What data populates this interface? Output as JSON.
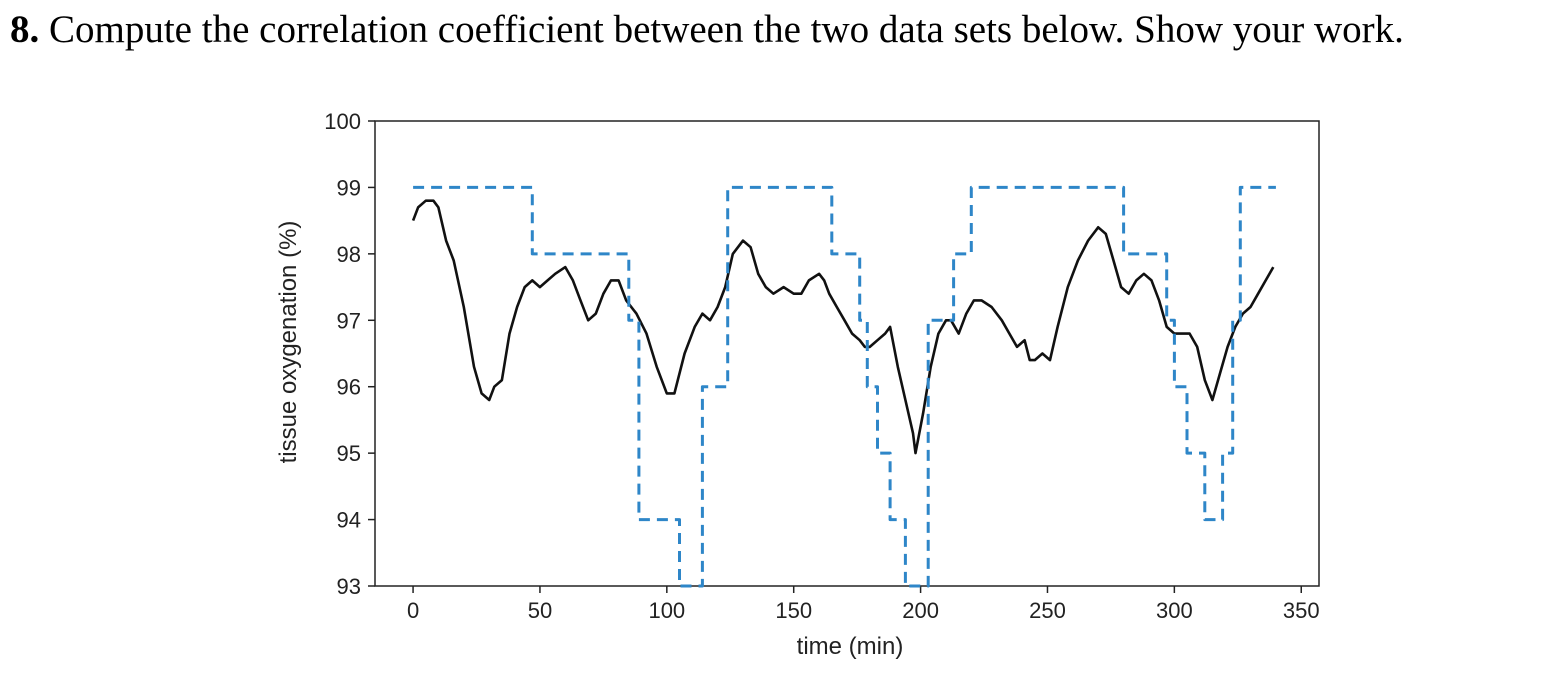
{
  "question": {
    "number": "8.",
    "text": " Compute the correlation coefficient between the two data sets below.  Show your work."
  },
  "chart_data": {
    "type": "line",
    "xlabel": "time (min)",
    "ylabel": "tissue oxygenation (%)",
    "xlim": [
      -15,
      357
    ],
    "ylim": [
      93,
      100
    ],
    "xticks": [
      0,
      50,
      100,
      150,
      200,
      250,
      300,
      350
    ],
    "yticks": [
      93,
      94,
      95,
      96,
      97,
      98,
      99,
      100
    ],
    "grid": false,
    "legend": "none",
    "series": [
      {
        "style": "solid",
        "color": "#111111",
        "x": [
          0,
          2,
          5,
          8,
          10,
          13,
          16,
          20,
          24,
          27,
          30,
          32,
          35,
          38,
          41,
          44,
          47,
          50,
          53,
          56,
          60,
          63,
          66,
          69,
          72,
          75,
          78,
          81,
          84,
          88,
          92,
          96,
          100,
          103,
          107,
          111,
          114,
          117,
          120,
          123,
          126,
          130,
          133,
          136,
          139,
          142,
          146,
          150,
          153,
          156,
          160,
          162,
          164,
          167,
          170,
          173,
          176,
          178,
          180,
          183,
          186,
          188,
          191,
          194,
          197,
          198,
          201,
          204,
          207,
          210,
          212,
          215,
          218,
          221,
          224,
          228,
          232,
          235,
          238,
          241,
          243,
          245,
          248,
          251,
          254,
          258,
          262,
          266,
          270,
          273,
          276,
          279,
          282,
          285,
          288,
          291,
          294,
          297,
          300,
          303,
          306,
          309,
          312,
          315,
          318,
          321,
          324,
          327,
          330,
          333,
          336,
          339
        ],
        "y": [
          98.5,
          98.7,
          98.8,
          98.8,
          98.7,
          98.2,
          97.9,
          97.2,
          96.3,
          95.9,
          95.8,
          96.0,
          96.1,
          96.8,
          97.2,
          97.5,
          97.6,
          97.5,
          97.6,
          97.7,
          97.8,
          97.6,
          97.3,
          97.0,
          97.1,
          97.4,
          97.6,
          97.6,
          97.3,
          97.1,
          96.8,
          96.3,
          95.9,
          95.9,
          96.5,
          96.9,
          97.1,
          97.0,
          97.2,
          97.5,
          98.0,
          98.2,
          98.1,
          97.7,
          97.5,
          97.4,
          97.5,
          97.4,
          97.4,
          97.6,
          97.7,
          97.6,
          97.4,
          97.2,
          97.0,
          96.8,
          96.7,
          96.6,
          96.6,
          96.7,
          96.8,
          96.9,
          96.3,
          95.8,
          95.3,
          95.0,
          95.6,
          96.3,
          96.8,
          97.0,
          97.0,
          96.8,
          97.1,
          97.3,
          97.3,
          97.2,
          97.0,
          96.8,
          96.6,
          96.7,
          96.4,
          96.4,
          96.5,
          96.4,
          96.9,
          97.5,
          97.9,
          98.2,
          98.4,
          98.3,
          97.9,
          97.5,
          97.4,
          97.6,
          97.7,
          97.6,
          97.3,
          96.9,
          96.8,
          96.8,
          96.8,
          96.6,
          96.1,
          95.8,
          96.2,
          96.6,
          96.9,
          97.1,
          97.2,
          97.4,
          97.6,
          97.8
        ]
      },
      {
        "style": "dashed",
        "color": "#2e86c8",
        "x": [
          0,
          47,
          47,
          85,
          85,
          89,
          89,
          105,
          105,
          114,
          114,
          117,
          117,
          120,
          120,
          124,
          124,
          165,
          165,
          176,
          176,
          179,
          179,
          183,
          183,
          188,
          188,
          194,
          194,
          203,
          203,
          207,
          207,
          213,
          213,
          220,
          220,
          280,
          280,
          297,
          297,
          300,
          300,
          305,
          305,
          312,
          312,
          316,
          316,
          319,
          319,
          323,
          323,
          326,
          326,
          331,
          331,
          340
        ],
        "y": [
          99,
          99,
          98,
          98,
          97,
          97,
          94,
          94,
          93,
          93,
          96,
          96,
          96,
          96,
          96,
          96,
          99,
          99,
          98,
          98,
          97,
          97,
          96,
          96,
          95,
          95,
          94,
          94,
          93,
          93,
          97,
          97,
          97,
          97,
          98,
          98,
          99,
          99,
          98,
          98,
          97,
          97,
          96,
          96,
          95,
          95,
          94,
          94,
          94,
          94,
          95,
          95,
          97,
          97,
          99,
          99,
          99,
          99
        ]
      }
    ]
  }
}
